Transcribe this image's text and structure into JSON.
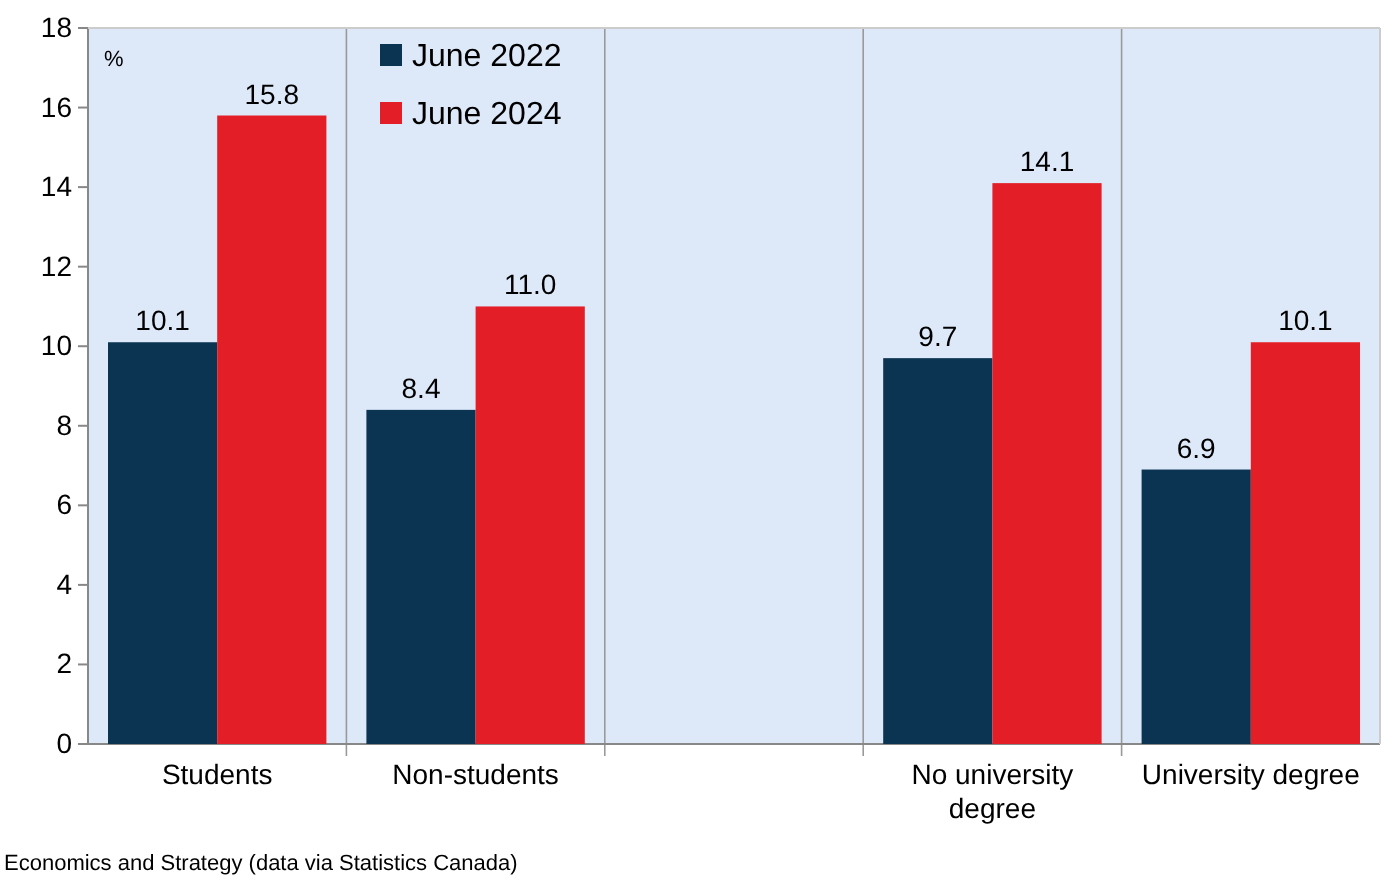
{
  "chart_data": {
    "type": "bar",
    "ylabel": "%",
    "categories": [
      "Students",
      "Non-students",
      null,
      "No university degree",
      "University degree"
    ],
    "series": [
      {
        "name": "June 2022",
        "color": "#0b3352",
        "values": [
          10.1,
          8.4,
          null,
          9.7,
          6.9
        ],
        "value_labels": [
          "10.1",
          "8.4",
          null,
          "9.7",
          "6.9"
        ]
      },
      {
        "name": "June 2024",
        "color": "#e31e26",
        "values": [
          15.8,
          11.0,
          null,
          14.1,
          10.1
        ],
        "value_labels": [
          "15.8",
          "11.0",
          null,
          "14.1",
          "10.1"
        ]
      }
    ],
    "ylim": [
      0,
      18
    ],
    "yticks": [
      0,
      2,
      4,
      6,
      8,
      10,
      12,
      14,
      16,
      18
    ],
    "grid": "x",
    "legend": "top left",
    "annotations": [
      "Economics and Strategy (data via Statistics Canada)"
    ]
  }
}
